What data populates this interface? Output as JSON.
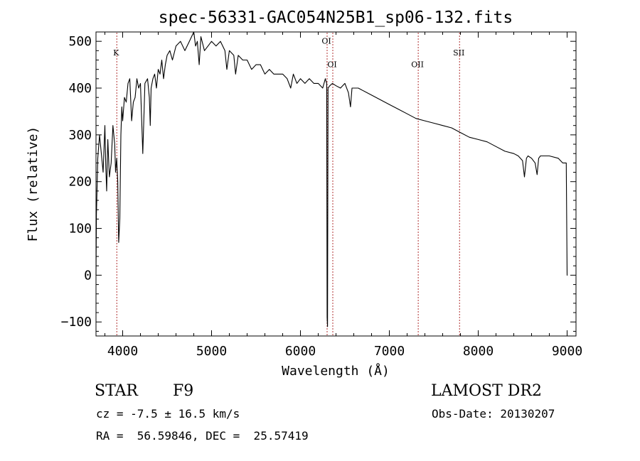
{
  "chart_data": {
    "type": "line",
    "title": "spec-56331-GAC054N25B1_sp06-132.fits",
    "xlabel": "Wavelength (Å)",
    "ylabel": "Flux (relative)",
    "xlim": [
      3700,
      9100
    ],
    "ylim": [
      -130,
      520
    ],
    "xticks": [
      4000,
      5000,
      6000,
      7000,
      8000,
      9000
    ],
    "yticks": [
      -100,
      0,
      100,
      200,
      300,
      400,
      500
    ],
    "grid": false,
    "series": [
      {
        "x": [
          3700,
          3705,
          3720,
          3740,
          3760,
          3780,
          3800,
          3810,
          3820,
          3833,
          3850,
          3870,
          3890,
          3910,
          3920,
          3933,
          3945,
          3955,
          3968,
          3980,
          3990,
          4000,
          4020,
          4040,
          4060,
          4080,
          4101,
          4120,
          4140,
          4160,
          4180,
          4200,
          4226,
          4250,
          4280,
          4300,
          4310,
          4320,
          4340,
          4360,
          4380,
          4400,
          4420,
          4440,
          4460,
          4480,
          4500,
          4530,
          4560,
          4600,
          4650,
          4700,
          4750,
          4800,
          4820,
          4840,
          4861,
          4880,
          4920,
          4960,
          5000,
          5050,
          5100,
          5150,
          5172,
          5200,
          5250,
          5270,
          5300,
          5350,
          5400,
          5450,
          5500,
          5550,
          5600,
          5650,
          5700,
          5750,
          5800,
          5850,
          5890,
          5920,
          5960,
          6000,
          6050,
          6100,
          6150,
          6200,
          6250,
          6280,
          6295,
          6300,
          6305,
          6310,
          6330,
          6360,
          6400,
          6450,
          6500,
          6540,
          6563,
          6580,
          6600,
          6650,
          6700,
          6800,
          6900,
          7000,
          7100,
          7200,
          7300,
          7400,
          7500,
          7600,
          7700,
          7800,
          7900,
          8000,
          8100,
          8200,
          8300,
          8400,
          8450,
          8498,
          8520,
          8542,
          8560,
          8600,
          8640,
          8662,
          8680,
          8700,
          8800,
          8900,
          8950,
          8990,
          9000,
          9005
        ],
        "y": [
          0,
          130,
          250,
          300,
          260,
          220,
          320,
          230,
          180,
          290,
          210,
          240,
          320,
          280,
          220,
          250,
          200,
          70,
          120,
          300,
          360,
          330,
          380,
          370,
          410,
          420,
          330,
          370,
          380,
          420,
          400,
          410,
          260,
          410,
          420,
          380,
          320,
          400,
          420,
          430,
          400,
          440,
          430,
          460,
          420,
          450,
          470,
          480,
          460,
          490,
          500,
          480,
          500,
          520,
          490,
          500,
          450,
          510,
          480,
          490,
          500,
          490,
          500,
          480,
          440,
          480,
          470,
          430,
          470,
          460,
          460,
          440,
          450,
          450,
          430,
          440,
          430,
          430,
          430,
          420,
          400,
          430,
          410,
          420,
          410,
          420,
          410,
          410,
          400,
          420,
          410,
          -90,
          -110,
          400,
          405,
          410,
          405,
          400,
          410,
          390,
          360,
          400,
          400,
          400,
          395,
          385,
          375,
          365,
          355,
          345,
          335,
          330,
          325,
          320,
          315,
          305,
          295,
          290,
          285,
          275,
          265,
          260,
          255,
          245,
          210,
          250,
          255,
          250,
          240,
          215,
          250,
          255,
          255,
          250,
          240,
          240,
          0,
          0
        ]
      }
    ],
    "markers": [
      {
        "label": "K",
        "x": 3934,
        "y": 470
      },
      {
        "label": "OI",
        "x": 6300,
        "y": 495
      },
      {
        "label": "OI",
        "x": 6364,
        "y": 445
      },
      {
        "label": "OII",
        "x": 7325,
        "y": 445
      },
      {
        "label": "SII",
        "x": 7790,
        "y": 470
      }
    ],
    "annotations": {
      "object": "STAR",
      "subclass": "F9",
      "survey": "LAMOST DR2",
      "redshift": "cz = -7.5 ± 16.5 km/s",
      "obs_date": "Obs-Date: 20130207",
      "coords": "RA =  56.59846, DEC =  25.57419"
    }
  }
}
